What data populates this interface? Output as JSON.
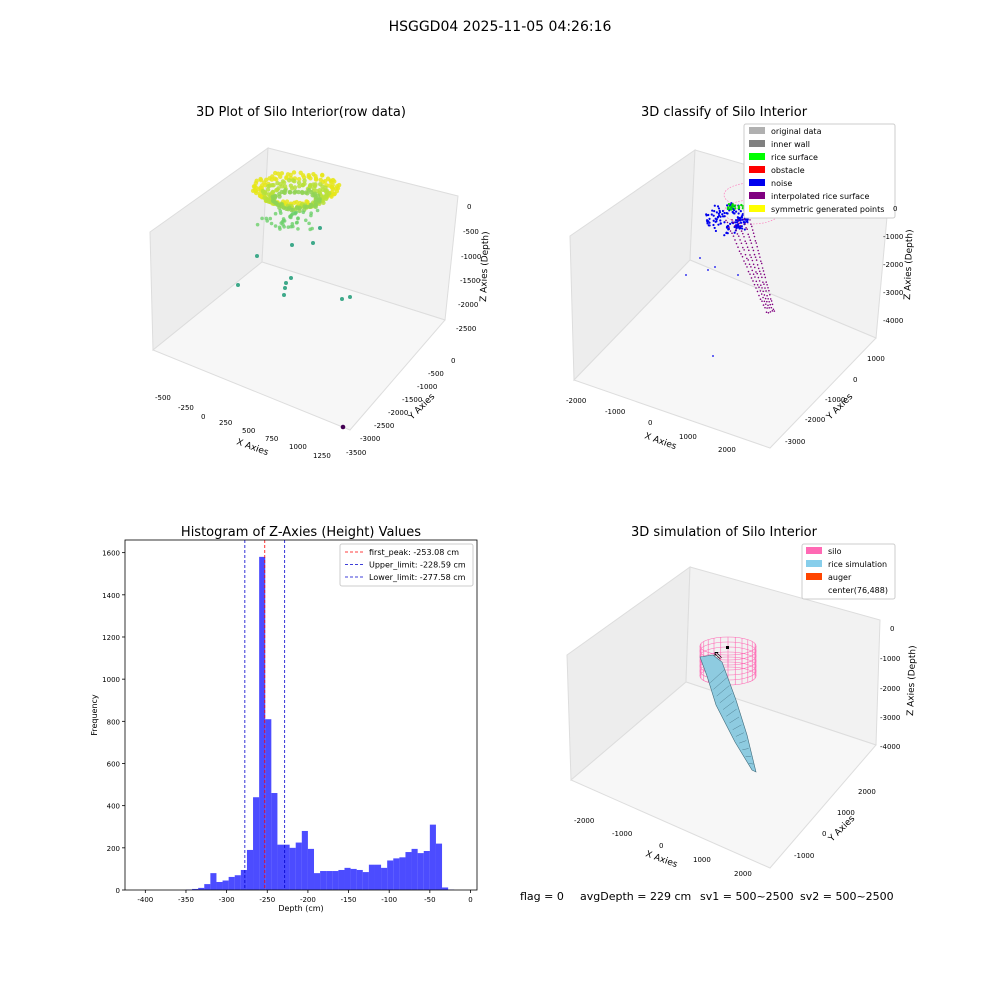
{
  "suptitle": "HSGGD04 2025-11-05 04:26:16",
  "footer": {
    "flag": "flag = 0",
    "avg": "avgDepth = 229 cm",
    "sv1": "sv1 = 500~2500",
    "sv2": "sv2 = 500~2500"
  },
  "panels": {
    "p1": {
      "title": "3D Plot of Silo Interior(row data)",
      "xlabel": "X Axies",
      "ylabel": "Y Axies",
      "zlabel": "Z Axies (Depth)",
      "xticks": [
        "-500",
        "-250",
        "0",
        "250",
        "500",
        "750",
        "1000",
        "1250"
      ],
      "yticks": [
        "0",
        "-500",
        "-1000",
        "-1500",
        "-2000",
        "-2500",
        "-3000",
        "-3500"
      ],
      "zticks": [
        "0",
        "-500",
        "-1000",
        "-1500",
        "-2000",
        "-2500"
      ]
    },
    "p2": {
      "title": "3D classify of Silo Interior",
      "xlabel": "X Axies",
      "ylabel": "Y Axies",
      "zlabel": "Z Axies (Depth)",
      "xticks": [
        "-2000",
        "-1000",
        "0",
        "1000",
        "2000"
      ],
      "yticks": [
        "1000",
        "0",
        "-1000",
        "-2000",
        "-3000"
      ],
      "zticks": [
        "0",
        "-1000",
        "-2000",
        "-3000",
        "-4000"
      ],
      "legend": [
        {
          "label": "original data",
          "color": "#b0b0b0"
        },
        {
          "label": "inner wall",
          "color": "#808080"
        },
        {
          "label": "rice surface",
          "color": "#00ff00"
        },
        {
          "label": "obstacle",
          "color": "#ff0000"
        },
        {
          "label": "noise",
          "color": "#0000ee"
        },
        {
          "label": "interpolated rice surface",
          "color": "#800080"
        },
        {
          "label": "symmetric generated points",
          "color": "#ffff00"
        }
      ]
    },
    "p4": {
      "title": "3D simulation of Silo Interior",
      "xlabel": "X Axies",
      "ylabel": "Y Axies",
      "zlabel": "Z Axies (Depth)",
      "xticks": [
        "-2000",
        "-1000",
        "0",
        "1000",
        "2000"
      ],
      "yticks": [
        "2000",
        "1000",
        "0",
        "-1000"
      ],
      "zticks": [
        "0",
        "-1000",
        "-2000",
        "-3000",
        "-4000"
      ],
      "legend": [
        {
          "label": "silo",
          "color": "#ff69b4"
        },
        {
          "label": "rice simulation",
          "color": "#87ceeb"
        },
        {
          "label": "auger",
          "color": "#ff4500"
        },
        {
          "label": "center(76,488)",
          "color": "#ffffff"
        }
      ]
    }
  },
  "chart_data": {
    "type": "bar",
    "title": "Histogram of Z-Axies (Height) Values",
    "xlabel": "Depth (cm)",
    "ylabel": "Frequency",
    "xlim": [
      -425,
      8
    ],
    "ylim": [
      0,
      1660
    ],
    "xticks": [
      -400,
      -350,
      -300,
      -250,
      -200,
      -150,
      -100,
      -50,
      0
    ],
    "yticks": [
      0,
      200,
      400,
      600,
      800,
      1000,
      1200,
      1400,
      1600
    ],
    "bin_width": 7.5,
    "bins_start": [
      -350,
      -342.5,
      -335,
      -327.5,
      -320,
      -312.5,
      -305,
      -297.5,
      -290,
      -282.5,
      -275,
      -267.5,
      -260,
      -252.5,
      -245,
      -237.5,
      -230,
      -222.5,
      -215,
      -207.5,
      -200,
      -192.5,
      -185,
      -177.5,
      -170,
      -162.5,
      -155,
      -147.5,
      -140,
      -132.5,
      -125,
      -117.5,
      -110,
      -102.5,
      -95,
      -87.5,
      -80,
      -72.5,
      -65,
      -57.5,
      -50,
      -42.5,
      -35,
      -27.5,
      -20,
      -12.5,
      -5
    ],
    "values": [
      2,
      5,
      10,
      28,
      80,
      38,
      45,
      62,
      70,
      95,
      190,
      440,
      1580,
      810,
      460,
      215,
      215,
      200,
      225,
      280,
      195,
      80,
      90,
      90,
      90,
      95,
      105,
      100,
      95,
      85,
      120,
      120,
      105,
      140,
      150,
      155,
      180,
      195,
      175,
      185,
      310,
      220,
      12,
      2,
      0,
      0,
      0
    ],
    "bar_color": "#0000ff",
    "lines": [
      {
        "label": "first_peak: -253.08 cm",
        "x": -253.08,
        "color": "#ff0000"
      },
      {
        "label": "Upper_limit: -228.59 cm",
        "x": -228.59,
        "color": "#0000cc"
      },
      {
        "label": "Lower_limit: -277.58 cm",
        "x": -277.58,
        "color": "#0000cc"
      }
    ],
    "legend_position": "top-right"
  }
}
